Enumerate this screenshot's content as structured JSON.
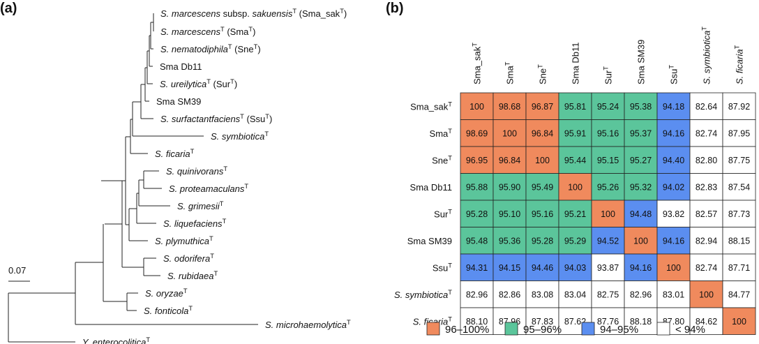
{
  "panels": {
    "a": "(a)",
    "b": "(b)"
  },
  "tree": {
    "scale_label": "0.07",
    "taxa": [
      {
        "id": "sma_sak",
        "parts": [
          {
            "t": "S. marcescens",
            "i": true
          },
          {
            "t": " subsp. "
          },
          {
            "t": "sakuensis",
            "i": true
          },
          {
            "t": "T",
            "sup": true
          },
          {
            "t": " (Sma_sak"
          },
          {
            "t": "T",
            "sup": true
          },
          {
            "t": ")"
          }
        ]
      },
      {
        "id": "sma",
        "parts": [
          {
            "t": "S. marcescens",
            "i": true
          },
          {
            "t": "T",
            "sup": true
          },
          {
            "t": " (Sma"
          },
          {
            "t": "T",
            "sup": true
          },
          {
            "t": ")"
          }
        ]
      },
      {
        "id": "sne",
        "parts": [
          {
            "t": "S. nematodiphila",
            "i": true
          },
          {
            "t": "T",
            "sup": true
          },
          {
            "t": " (Sne"
          },
          {
            "t": "T",
            "sup": true
          },
          {
            "t": ")"
          }
        ]
      },
      {
        "id": "db11",
        "parts": [
          {
            "t": "Sma Db11"
          }
        ]
      },
      {
        "id": "sur",
        "parts": [
          {
            "t": "S. ureilytica",
            "i": true
          },
          {
            "t": "T",
            "sup": true
          },
          {
            "t": " (Sur"
          },
          {
            "t": "T",
            "sup": true
          },
          {
            "t": ")"
          }
        ]
      },
      {
        "id": "sm39",
        "parts": [
          {
            "t": "Sma SM39"
          }
        ]
      },
      {
        "id": "ssu",
        "parts": [
          {
            "t": "S. surfactantfaciens",
            "i": true
          },
          {
            "t": "T",
            "sup": true
          },
          {
            "t": " (Ssu"
          },
          {
            "t": "T",
            "sup": true
          },
          {
            "t": ")"
          }
        ]
      },
      {
        "id": "sym",
        "parts": [
          {
            "t": "S. symbiotica",
            "i": true
          },
          {
            "t": "T",
            "sup": true
          }
        ]
      },
      {
        "id": "fic",
        "parts": [
          {
            "t": "S. ficaria",
            "i": true
          },
          {
            "t": "T",
            "sup": true
          }
        ]
      },
      {
        "id": "qui",
        "parts": [
          {
            "t": "S. quinivorans",
            "i": true
          },
          {
            "t": "T",
            "sup": true
          }
        ]
      },
      {
        "id": "pro",
        "parts": [
          {
            "t": "S. proteamaculans",
            "i": true
          },
          {
            "t": "T",
            "sup": true
          }
        ]
      },
      {
        "id": "gri",
        "parts": [
          {
            "t": "S. grimesii",
            "i": true
          },
          {
            "t": "T",
            "sup": true
          }
        ]
      },
      {
        "id": "liq",
        "parts": [
          {
            "t": "S. liquefaciens",
            "i": true
          },
          {
            "t": "T",
            "sup": true
          }
        ]
      },
      {
        "id": "ply",
        "parts": [
          {
            "t": "S. plymuthica",
            "i": true
          },
          {
            "t": "T",
            "sup": true
          }
        ]
      },
      {
        "id": "odo",
        "parts": [
          {
            "t": "S. odorifera",
            "i": true
          },
          {
            "t": "T",
            "sup": true
          }
        ]
      },
      {
        "id": "rub",
        "parts": [
          {
            "t": "S. rubidaea",
            "i": true
          },
          {
            "t": "T",
            "sup": true
          }
        ]
      },
      {
        "id": "ory",
        "parts": [
          {
            "t": "S. oryzae",
            "i": true
          },
          {
            "t": "T",
            "sup": true
          }
        ]
      },
      {
        "id": "fon",
        "parts": [
          {
            "t": "S. fonticola",
            "i": true
          },
          {
            "t": "T",
            "sup": true
          }
        ]
      },
      {
        "id": "mic",
        "parts": [
          {
            "t": "S. microhaemolytica",
            "i": true
          },
          {
            "t": "T",
            "sup": true
          }
        ]
      },
      {
        "id": "yen",
        "parts": [
          {
            "t": "Y. enterocolitica",
            "i": true
          },
          {
            "t": "T",
            "sup": true
          }
        ]
      }
    ]
  },
  "matrix": {
    "col_labels": [
      [
        {
          "t": "Sma_sak"
        },
        {
          "t": "T",
          "sup": true
        }
      ],
      [
        {
          "t": "Sma"
        },
        {
          "t": "T",
          "sup": true
        }
      ],
      [
        {
          "t": "Sne"
        },
        {
          "t": "T",
          "sup": true
        }
      ],
      [
        {
          "t": "Sma Db11"
        }
      ],
      [
        {
          "t": "Sur"
        },
        {
          "t": "T",
          "sup": true
        }
      ],
      [
        {
          "t": "Sma SM39"
        }
      ],
      [
        {
          "t": "Ssu"
        },
        {
          "t": "T",
          "sup": true
        }
      ],
      [
        {
          "t": "S. symbiotica",
          "i": true
        },
        {
          "t": "T",
          "sup": true
        }
      ],
      [
        {
          "t": "S. ficaria",
          "i": true
        },
        {
          "t": "T",
          "sup": true
        }
      ]
    ],
    "row_labels": [
      [
        {
          "t": "Sma_sak"
        },
        {
          "t": "T",
          "sup": true
        }
      ],
      [
        {
          "t": "Sma"
        },
        {
          "t": "T",
          "sup": true
        }
      ],
      [
        {
          "t": "Sne"
        },
        {
          "t": "T",
          "sup": true
        }
      ],
      [
        {
          "t": "Sma Db11"
        }
      ],
      [
        {
          "t": "Sur"
        },
        {
          "t": "T",
          "sup": true
        }
      ],
      [
        {
          "t": "Sma SM39"
        }
      ],
      [
        {
          "t": "Ssu"
        },
        {
          "t": "T",
          "sup": true
        }
      ],
      [
        {
          "t": "S. symbiotica",
          "i": true
        },
        {
          "t": "T",
          "sup": true
        }
      ],
      [
        {
          "t": "S. ficaria",
          "i": true
        },
        {
          "t": "T",
          "sup": true
        }
      ]
    ],
    "values": [
      [
        "100",
        "98.68",
        "96.87",
        "95.81",
        "95.24",
        "95.38",
        "94.18",
        "82.64",
        "87.92"
      ],
      [
        "98.69",
        "100",
        "96.84",
        "95.91",
        "95.16",
        "95.37",
        "94.16",
        "82.74",
        "87.95"
      ],
      [
        "96.95",
        "96.84",
        "100",
        "95.44",
        "95.15",
        "95.27",
        "94.40",
        "82.80",
        "87.75"
      ],
      [
        "95.88",
        "95.90",
        "95.49",
        "100",
        "95.26",
        "95.32",
        "94.02",
        "82.83",
        "87.54"
      ],
      [
        "95.28",
        "95.10",
        "95.16",
        "95.21",
        "100",
        "94.48",
        "93.82",
        "82.57",
        "87.73"
      ],
      [
        "95.48",
        "95.36",
        "95.28",
        "95.29",
        "94.52",
        "100",
        "94.16",
        "82.94",
        "88.15"
      ],
      [
        "94.31",
        "94.15",
        "94.46",
        "94.03",
        "93.87",
        "94.16",
        "100",
        "82.74",
        "87.71"
      ],
      [
        "82.96",
        "82.86",
        "83.08",
        "83.04",
        "82.75",
        "82.96",
        "83.01",
        "100",
        "84.77"
      ],
      [
        "88.10",
        "87.96",
        "87.83",
        "87.62",
        "87.76",
        "88.18",
        "87.80",
        "84.62",
        "100"
      ]
    ]
  },
  "legend": [
    {
      "label": "96–100%",
      "color": "#f08a5d"
    },
    {
      "label": "95–96%",
      "color": "#5bc59b"
    },
    {
      "label": "94–95%",
      "color": "#5b8ef0"
    },
    {
      "label": "< 94%",
      "color": "#ffffff"
    }
  ]
}
